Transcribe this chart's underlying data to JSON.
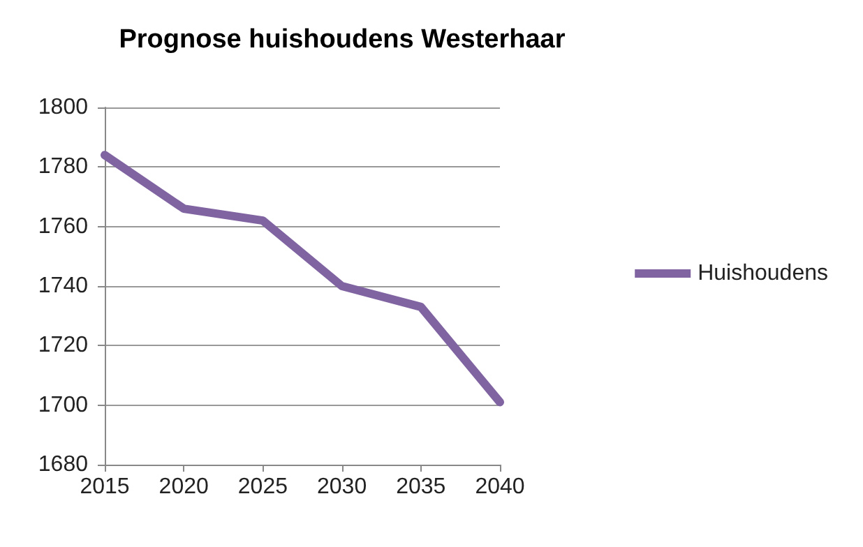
{
  "chart_data": {
    "type": "line",
    "title": "Prognose huishoudens Westerhaar",
    "categories": [
      "2015",
      "2020",
      "2025",
      "2030",
      "2035",
      "2040"
    ],
    "series": [
      {
        "name": "Huishoudens",
        "color": "#8064a2",
        "values": [
          1784,
          1766,
          1762,
          1740,
          1733,
          1701
        ]
      }
    ],
    "ylim": [
      1680,
      1800
    ],
    "yticks": [
      1680,
      1700,
      1720,
      1740,
      1760,
      1780,
      1800
    ],
    "grid": "y",
    "legend": "right",
    "marker": "none",
    "line_style": "solid"
  }
}
